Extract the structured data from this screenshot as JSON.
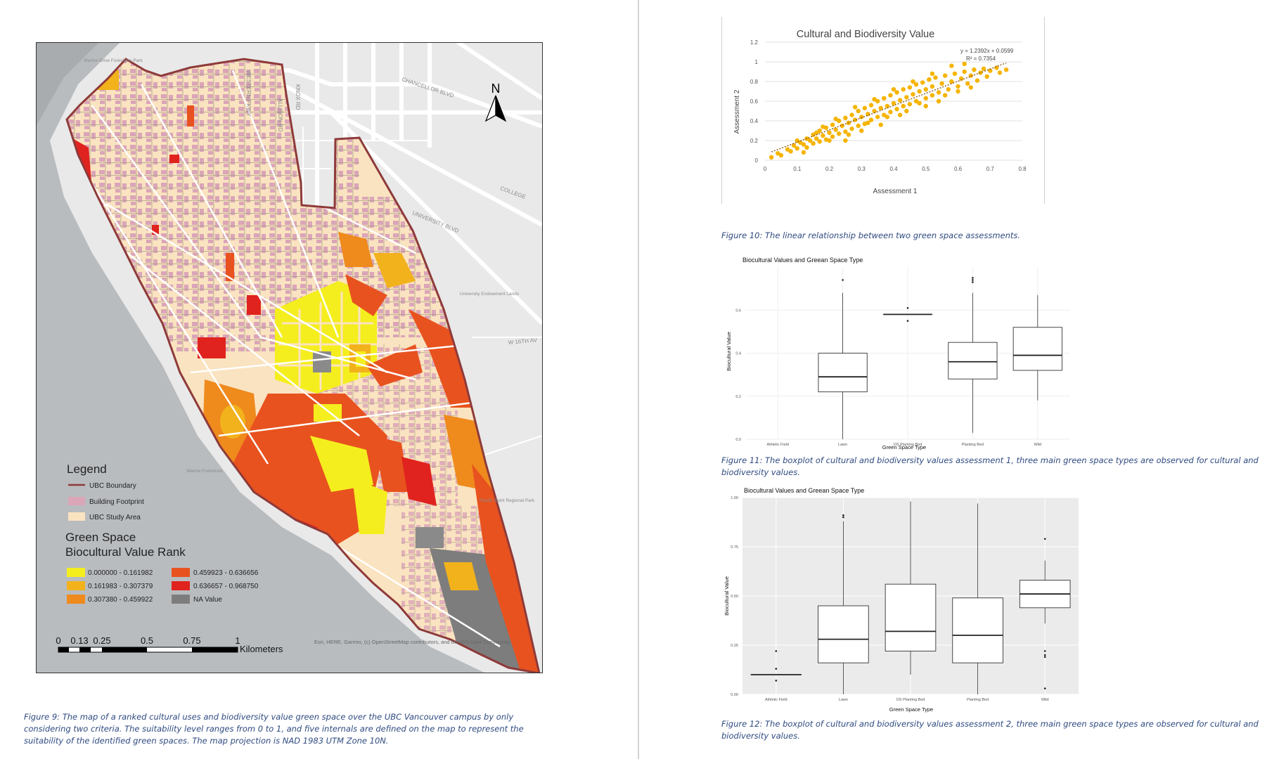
{
  "map": {
    "north_label": "N",
    "street_labels": [
      "CHANCELLOR BLVD",
      "WESTERN PKWY",
      "ALLISON RD",
      "KNOX RD",
      "COLLEGE",
      "UNIVERSITY BLVD",
      "W 16TH AV"
    ],
    "place_labels": [
      "Marine Drive Foreshore Park",
      "University Endowment Lands",
      "Pacific Spirit Regional Park",
      "Marine Foreshore"
    ],
    "legend": {
      "title": "Legend",
      "boundary": "UBC Boundary",
      "building": "Building Footprint",
      "study_area": "UBC Study Area",
      "rank_title_1": "Green Space",
      "rank_title_2": "Biocultural Value Rank",
      "classes": [
        {
          "label": "0.000000 - 0.161982",
          "color": "#f5ee1e"
        },
        {
          "label": "0.161983 - 0.307379",
          "color": "#f2b21c"
        },
        {
          "label": "0.307380 - 0.459922",
          "color": "#ef8a1d"
        },
        {
          "label": "0.459923 - 0.636656",
          "color": "#e8521f"
        },
        {
          "label": "0.636657 - 0.968750",
          "color": "#e0231e"
        },
        {
          "label": "NA Value",
          "color": "#7d7d7d"
        }
      ]
    },
    "scale": {
      "ticks": [
        "0",
        "0.13",
        "0.25",
        "0.5",
        "0.75",
        "1"
      ],
      "unit": "Kilometers"
    },
    "attribution": "Esri, HERE, Garmin, (c) OpenStreetMap contributors, and the GIS User Community",
    "colors": {
      "study_area": "#fae3c0",
      "building": "#dba5b8",
      "boundary": "#8e3a3a",
      "water": "#b9bcbf",
      "land": "#e9e9e9"
    }
  },
  "fig9_caption": "Figure 9: The map of a ranked cultural uses and biodiversity value green space over the UBC Vancouver campus by only considering two criteria. The suitability level ranges from 0 to 1, and five internals are defined on the map to represent the suitability of the identified green spaces. The map projection is NAD 1983 UTM Zone 10N.",
  "fig10_caption": "Figure 10: The linear relationship between two green space assessments.",
  "fig11_caption": "Figure 11: The boxplot of cultural and biodiversity values assessment 1, three main green space types are observed for cultural and biodiversity values.",
  "fig12_caption": "Figure 12: The boxplot of cultural and biodiversity values assessment 2, three main green space types are observed for cultural and biodiversity values.",
  "chart_data": [
    {
      "id": "fig10",
      "type": "scatter",
      "title": "Cultural and Biodiversity Value",
      "xlabel": "Assessment 1",
      "ylabel": "Assessment 2",
      "xlim": [
        0,
        0.8
      ],
      "ylim": [
        0,
        1.2
      ],
      "xticks": [
        "0",
        "0.1",
        "0.2",
        "0.3",
        "0.4",
        "0.5",
        "0.6",
        "0.7",
        "0.8"
      ],
      "yticks": [
        "0",
        "0.2",
        "0.4",
        "0.6",
        "0.8",
        "1",
        "1.2"
      ],
      "equation": "y = 1.2392x + 0.0599",
      "r2": "R² = 0.7354",
      "trendline": {
        "slope": 1.2392,
        "intercept": 0.0599,
        "x_range": [
          0.02,
          0.75
        ]
      },
      "color": "#f6b400",
      "points": [
        [
          0.02,
          0.03
        ],
        [
          0.04,
          0.07
        ],
        [
          0.05,
          0.05
        ],
        [
          0.07,
          0.11
        ],
        [
          0.08,
          0.09
        ],
        [
          0.09,
          0.15
        ],
        [
          0.1,
          0.12
        ],
        [
          0.11,
          0.18
        ],
        [
          0.12,
          0.16
        ],
        [
          0.13,
          0.22
        ],
        [
          0.13,
          0.13
        ],
        [
          0.14,
          0.2
        ],
        [
          0.15,
          0.26
        ],
        [
          0.15,
          0.17
        ],
        [
          0.16,
          0.22
        ],
        [
          0.17,
          0.3
        ],
        [
          0.17,
          0.19
        ],
        [
          0.18,
          0.25
        ],
        [
          0.19,
          0.33
        ],
        [
          0.19,
          0.21
        ],
        [
          0.2,
          0.28
        ],
        [
          0.21,
          0.36
        ],
        [
          0.21,
          0.24
        ],
        [
          0.22,
          0.31
        ],
        [
          0.23,
          0.4
        ],
        [
          0.23,
          0.27
        ],
        [
          0.24,
          0.35
        ],
        [
          0.25,
          0.43
        ],
        [
          0.25,
          0.29
        ],
        [
          0.26,
          0.38
        ],
        [
          0.27,
          0.46
        ],
        [
          0.27,
          0.32
        ],
        [
          0.28,
          0.41
        ],
        [
          0.29,
          0.5
        ],
        [
          0.29,
          0.35
        ],
        [
          0.3,
          0.44
        ],
        [
          0.31,
          0.53
        ],
        [
          0.31,
          0.37
        ],
        [
          0.32,
          0.47
        ],
        [
          0.33,
          0.56
        ],
        [
          0.33,
          0.41
        ],
        [
          0.34,
          0.5
        ],
        [
          0.35,
          0.6
        ],
        [
          0.35,
          0.44
        ],
        [
          0.36,
          0.53
        ],
        [
          0.37,
          0.63
        ],
        [
          0.37,
          0.46
        ],
        [
          0.38,
          0.55
        ],
        [
          0.39,
          0.66
        ],
        [
          0.39,
          0.49
        ],
        [
          0.4,
          0.58
        ],
        [
          0.41,
          0.69
        ],
        [
          0.41,
          0.52
        ],
        [
          0.42,
          0.61
        ],
        [
          0.43,
          0.72
        ],
        [
          0.43,
          0.55
        ],
        [
          0.44,
          0.64
        ],
        [
          0.45,
          0.74
        ],
        [
          0.45,
          0.57
        ],
        [
          0.46,
          0.67
        ],
        [
          0.47,
          0.77
        ],
        [
          0.47,
          0.6
        ],
        [
          0.48,
          0.7
        ],
        [
          0.49,
          0.79
        ],
        [
          0.5,
          0.63
        ],
        [
          0.5,
          0.72
        ],
        [
          0.51,
          0.82
        ],
        [
          0.52,
          0.66
        ],
        [
          0.52,
          0.75
        ],
        [
          0.53,
          0.84
        ],
        [
          0.54,
          0.69
        ],
        [
          0.55,
          0.78
        ],
        [
          0.56,
          0.86
        ],
        [
          0.57,
          0.72
        ],
        [
          0.58,
          0.8
        ],
        [
          0.59,
          0.88
        ],
        [
          0.6,
          0.75
        ],
        [
          0.61,
          0.83
        ],
        [
          0.62,
          0.9
        ],
        [
          0.63,
          0.78
        ],
        [
          0.64,
          0.86
        ],
        [
          0.65,
          0.92
        ],
        [
          0.66,
          0.81
        ],
        [
          0.67,
          0.89
        ],
        [
          0.68,
          0.93
        ],
        [
          0.69,
          0.85
        ],
        [
          0.7,
          0.91
        ],
        [
          0.72,
          0.94
        ],
        [
          0.73,
          0.89
        ],
        [
          0.75,
          0.92
        ],
        [
          0.58,
          0.96
        ],
        [
          0.62,
          0.98
        ],
        [
          0.25,
          0.2
        ],
        [
          0.3,
          0.3
        ],
        [
          0.36,
          0.36
        ],
        [
          0.44,
          0.5
        ],
        [
          0.5,
          0.55
        ],
        [
          0.54,
          0.6
        ],
        [
          0.18,
          0.34
        ],
        [
          0.22,
          0.42
        ],
        [
          0.28,
          0.54
        ],
        [
          0.34,
          0.62
        ],
        [
          0.4,
          0.72
        ],
        [
          0.46,
          0.8
        ],
        [
          0.52,
          0.88
        ],
        [
          0.1,
          0.2
        ],
        [
          0.16,
          0.28
        ],
        [
          0.12,
          0.08
        ],
        [
          0.2,
          0.2
        ],
        [
          0.26,
          0.26
        ],
        [
          0.32,
          0.38
        ],
        [
          0.38,
          0.44
        ],
        [
          0.42,
          0.46
        ],
        [
          0.48,
          0.58
        ],
        [
          0.56,
          0.66
        ],
        [
          0.6,
          0.7
        ],
        [
          0.64,
          0.74
        ]
      ]
    },
    {
      "id": "fig11",
      "type": "boxplot",
      "title": "Biocultural Values and Greean Space Type",
      "xlabel": "Green Space Type",
      "ylabel": "Biocultural Value",
      "ylim": [
        0,
        0.8
      ],
      "yticks": [
        "0.0",
        "0.2",
        "0.4",
        "0.6"
      ],
      "categories": [
        "Athletic Field",
        "Lawn",
        "OS Planting Bed",
        "Planting Bed",
        "Wild"
      ],
      "boxes": [
        null,
        {
          "min": 0.0,
          "q1": 0.22,
          "median": 0.29,
          "q3": 0.4,
          "max": 0.68,
          "outliers": [
            0.74
          ]
        },
        {
          "min": 0.58,
          "q1": 0.58,
          "median": 0.58,
          "q3": 0.58,
          "max": 0.58,
          "outliers": [
            0.61,
            0.55
          ]
        },
        {
          "min": 0.03,
          "q1": 0.28,
          "median": 0.36,
          "q3": 0.45,
          "max": 0.68,
          "outliers": [
            0.73,
            0.74,
            0.75
          ]
        },
        {
          "min": 0.18,
          "q1": 0.32,
          "median": 0.39,
          "q3": 0.52,
          "max": 0.67,
          "outliers": []
        }
      ]
    },
    {
      "id": "fig12",
      "type": "boxplot",
      "title": "Biocultural Values and Greean Space Type",
      "xlabel": "Green Space Type",
      "ylabel": "Biocultural Value",
      "ylim": [
        0,
        1.0
      ],
      "yticks": [
        "0.00",
        "0.25",
        "0.50",
        "0.75",
        "1.00"
      ],
      "categories": [
        "Athletic Field",
        "Lawn",
        "OS Planting Bed",
        "Planting Bed",
        "Wild"
      ],
      "boxes": [
        {
          "min": 0.1,
          "q1": 0.1,
          "median": 0.1,
          "q3": 0.1,
          "max": 0.1,
          "outliers": [
            0.22,
            0.13,
            0.07
          ]
        },
        {
          "min": 0.0,
          "q1": 0.16,
          "median": 0.28,
          "q3": 0.45,
          "max": 0.88,
          "outliers": [
            0.9,
            0.91
          ]
        },
        {
          "min": 0.1,
          "q1": 0.22,
          "median": 0.32,
          "q3": 0.56,
          "max": 0.98,
          "outliers": []
        },
        {
          "min": 0.0,
          "q1": 0.16,
          "median": 0.3,
          "q3": 0.49,
          "max": 0.97,
          "outliers": []
        },
        {
          "min": 0.36,
          "q1": 0.44,
          "median": 0.51,
          "q3": 0.58,
          "max": 0.68,
          "outliers": [
            0.79,
            0.22,
            0.2,
            0.19,
            0.03
          ]
        }
      ]
    }
  ]
}
